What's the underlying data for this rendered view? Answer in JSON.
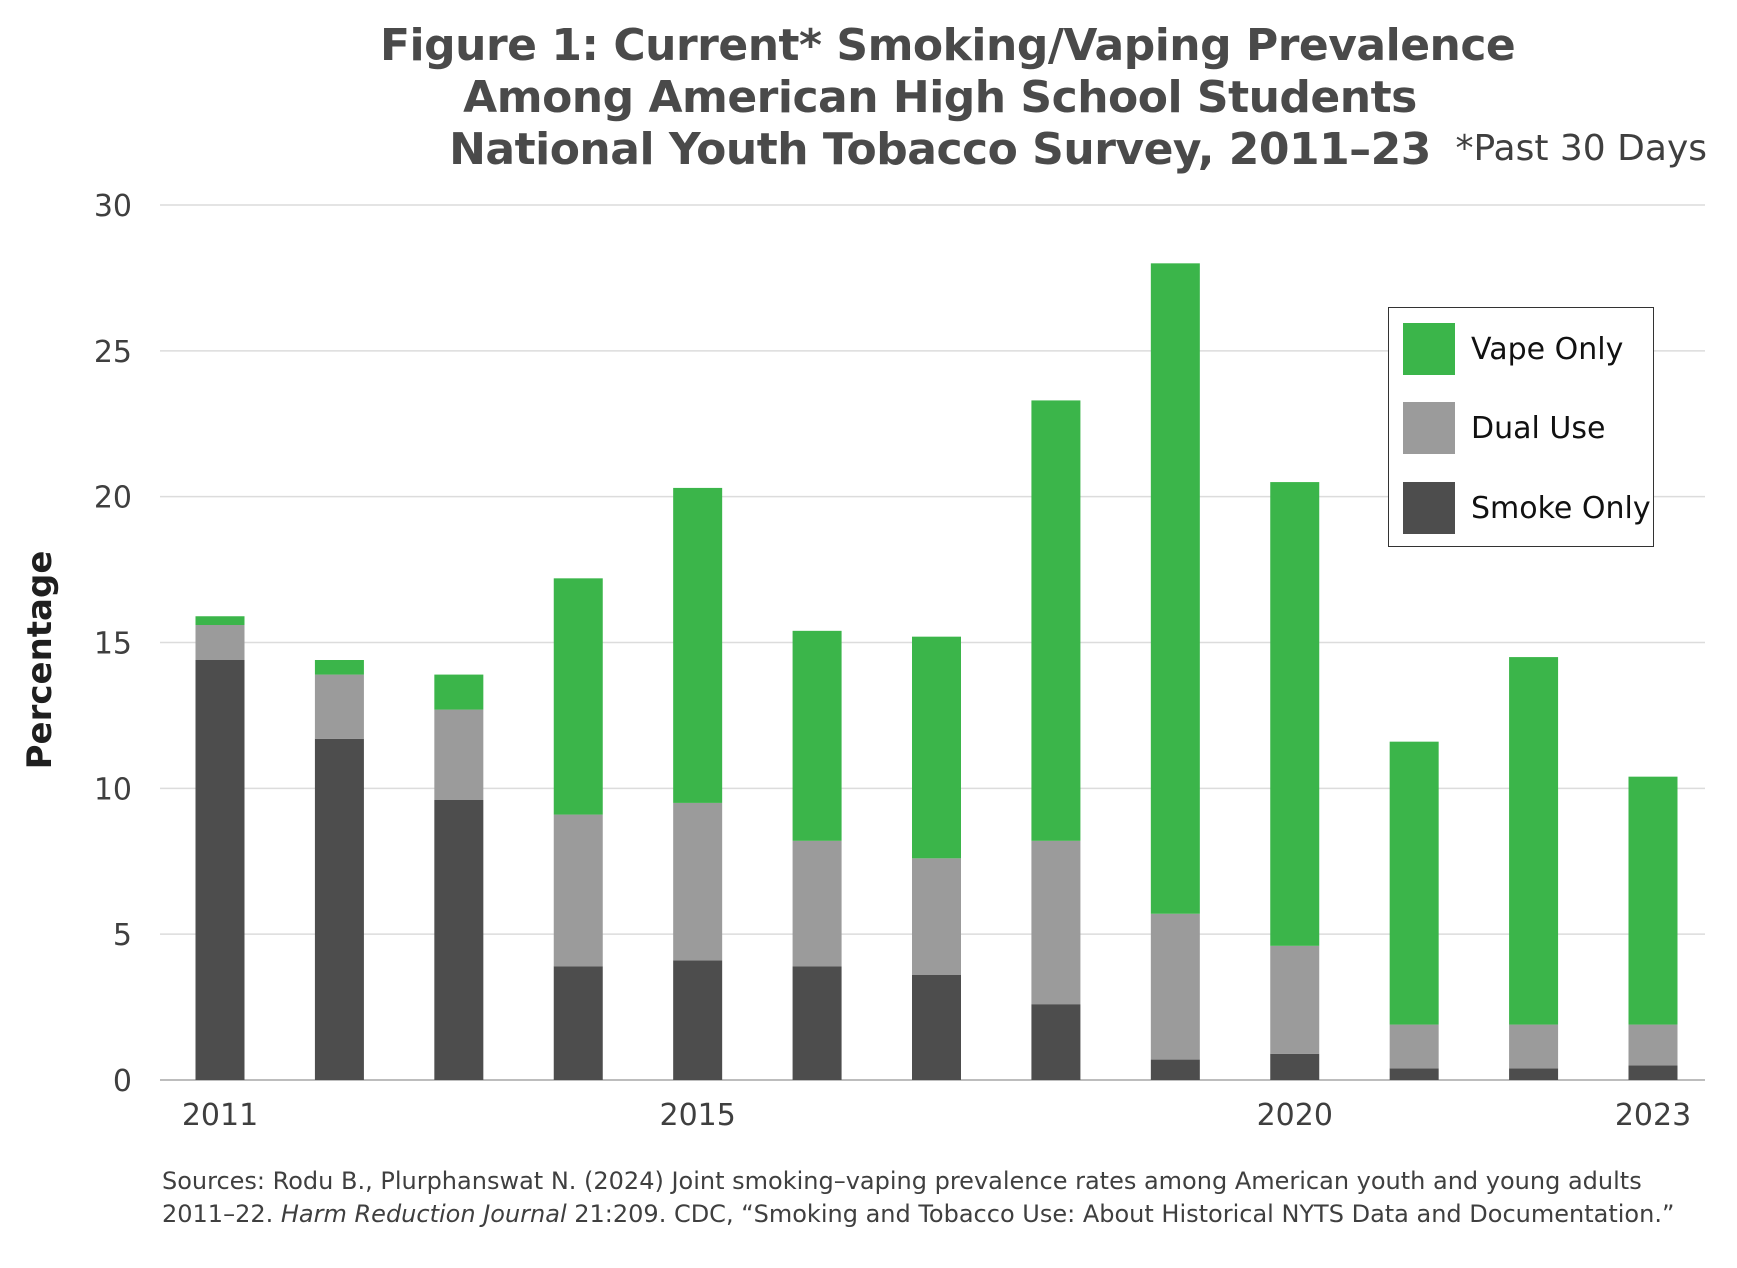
{
  "chart_data": {
    "type": "bar",
    "stacked": true,
    "title": [
      "Figure 1: Current* Smoking/Vaping Prevalence",
      "Among American High School Students",
      "National Youth Tobacco Survey, 2011–23"
    ],
    "note": "*Past 30 Days",
    "ylabel": "Percentage",
    "xlabel": "",
    "ylim": [
      0,
      30
    ],
    "yticks": [
      0,
      5,
      10,
      15,
      20,
      25,
      30
    ],
    "categories": [
      "2011",
      "2012",
      "2013",
      "2014",
      "2015",
      "2016",
      "2017",
      "2018",
      "2019",
      "2020",
      "2021",
      "2022",
      "2023"
    ],
    "x_tick_labels": [
      "2011",
      "2015",
      "2020",
      "2023"
    ],
    "series": [
      {
        "name": "Smoke Only",
        "color": "#4d4d4d",
        "values": [
          14.4,
          11.7,
          9.6,
          3.9,
          4.1,
          3.9,
          3.6,
          2.6,
          0.7,
          0.9,
          0.4,
          0.4,
          0.5
        ]
      },
      {
        "name": "Dual Use",
        "color": "#9b9b9b",
        "values": [
          1.2,
          2.2,
          3.1,
          5.2,
          5.4,
          4.3,
          4.0,
          5.6,
          5.0,
          3.7,
          1.5,
          1.5,
          1.4
        ]
      },
      {
        "name": "Vape Only",
        "color": "#3bb54a",
        "values": [
          0.3,
          0.5,
          1.2,
          8.1,
          10.8,
          7.2,
          7.6,
          15.1,
          22.3,
          15.9,
          9.7,
          12.6,
          8.5
        ]
      }
    ],
    "legend_order": [
      "Vape Only",
      "Dual Use",
      "Smoke Only"
    ],
    "legend_position": "top-right",
    "grid": true
  },
  "sources": {
    "line1_prefix": "Sources: Rodu B., Plurphanswat N. (2024) Joint smoking–vaping prevalence rates among American youth and young adults 2011–22. ",
    "journal": "Harm Reduction Journal",
    "line1_suffix": " 21:209. CDC, “Smoking and Tobacco Use: About Historical NYTS Data and Documentation.”"
  }
}
